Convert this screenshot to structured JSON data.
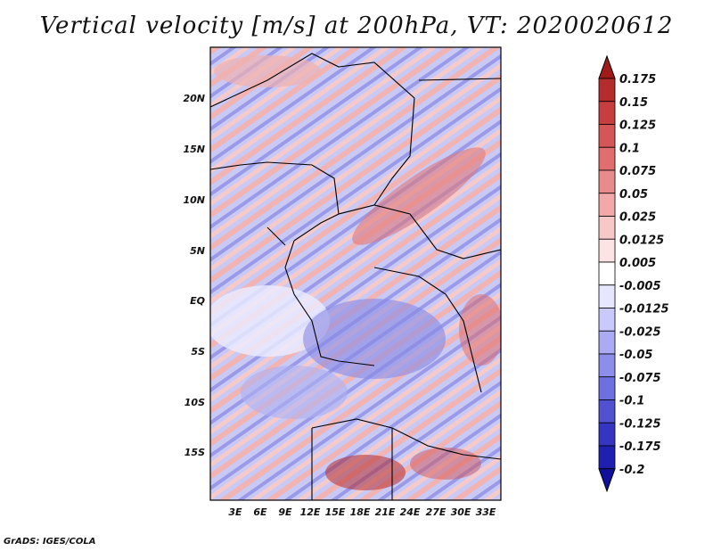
{
  "title": "Vertical velocity [m/s] at 200hPa, VT: 2020020612",
  "credit": "GrADS: IGES/COLA",
  "map": {
    "lon_labels": [
      "3E",
      "6E",
      "9E",
      "12E",
      "15E",
      "18E",
      "21E",
      "24E",
      "27E",
      "30E",
      "33E"
    ],
    "lat_labels": [
      "20N",
      "15N",
      "10N",
      "5N",
      "EQ",
      "5S",
      "10S",
      "15S"
    ]
  },
  "colorbar": {
    "labels": [
      "0.175",
      "0.15",
      "0.125",
      "0.1",
      "0.075",
      "0.05",
      "0.025",
      "0.0125",
      "0.005",
      "-0.005",
      "-0.0125",
      "-0.025",
      "-0.05",
      "-0.075",
      "-0.1",
      "-0.125",
      "-0.175",
      "-0.2"
    ],
    "colors": [
      "#a11a1a",
      "#b52c2c",
      "#c63e3e",
      "#d45656",
      "#e06e6e",
      "#e98b8b",
      "#f3a9a9",
      "#f8c7c7",
      "#fde4e4",
      "#ffffff",
      "#e6e6ff",
      "#c9c9fb",
      "#ababf4",
      "#8d8deb",
      "#6f6fe0",
      "#5151d2",
      "#3535c2",
      "#2020b0",
      "#10109c"
    ]
  }
}
